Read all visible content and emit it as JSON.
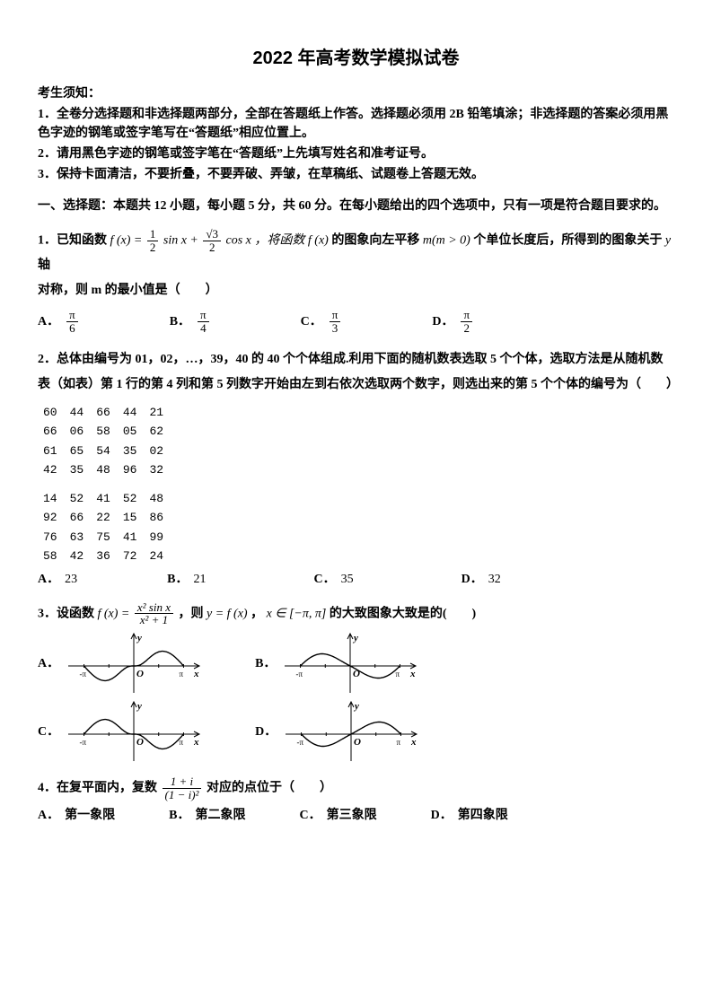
{
  "title": "2022 年高考数学模拟试卷",
  "instructions_header": "考生须知：",
  "instructions": [
    "1．全卷分选择题和非选择题两部分，全部在答题纸上作答。选择题必须用 2B 铅笔填涂；非选择题的答案必须用黑色字迹的钢笔或签字笔写在“答题纸”相应位置上。",
    "2．请用黑色字迹的钢笔或签字笔在“答题纸”上先填写姓名和准考证号。",
    "3．保持卡面清洁，不要折叠，不要弄破、弄皱，在草稿纸、试题卷上答题无效。"
  ],
  "section1": "一、选择题：本题共 12 小题，每小题 5 分，共 60 分。在每小题给出的四个选项中，只有一项是符合题目要求的。",
  "q1": {
    "pre": "1．已知函数 ",
    "fn_lhs": "f (x) = ",
    "frac1": {
      "num": "1",
      "den": "2"
    },
    "mid1": " sin x + ",
    "frac2": {
      "num": "√3",
      "den": "2"
    },
    "mid2": " cos x ，将函数 ",
    "fx": "f (x)",
    "post1": " 的图象向左平移 ",
    "mcond": "m(m > 0)",
    "post2": " 个单位长度后，所得到的图象关于 ",
    "yaxis": "y",
    "post3": " 轴",
    "line2": "对称，则 m 的最小值是（　　）",
    "options": {
      "A": {
        "num": "π",
        "den": "6"
      },
      "B": {
        "num": "π",
        "den": "4"
      },
      "C": {
        "num": "π",
        "den": "3"
      },
      "D": {
        "num": "π",
        "den": "2"
      }
    }
  },
  "q2": {
    "text": "2．总体由编号为 01，02，…，39，40 的 40 个个体组成.利用下面的随机数表选取 5 个个体，选取方法是从随机数表（如表）第 1 行的第 4 列和第 5 列数字开始由左到右依次选取两个数字，则选出来的第 5 个个体的编号为（　　）",
    "table": {
      "block1": [
        [
          "60",
          "44",
          "66",
          "44",
          "21"
        ],
        [
          "66",
          "06",
          "58",
          "05",
          "62"
        ],
        [
          "61",
          "65",
          "54",
          "35",
          "02"
        ],
        [
          "42",
          "35",
          "48",
          "96",
          "32"
        ]
      ],
      "block2": [
        [
          "14",
          "52",
          "41",
          "52",
          "48"
        ],
        [
          "92",
          "66",
          "22",
          "15",
          "86"
        ],
        [
          "76",
          "63",
          "75",
          "41",
          "99"
        ],
        [
          "58",
          "42",
          "36",
          "72",
          "24"
        ]
      ]
    },
    "options": {
      "A": "23",
      "B": "21",
      "C": "35",
      "D": "32"
    }
  },
  "q3": {
    "pre": "3．设函数 ",
    "fn_lhs": "f (x) = ",
    "frac": {
      "num": "x² sin x",
      "den": "x² + 1"
    },
    "mid": " ，则 ",
    "yfx": "y = f (x)",
    "comma": " ， ",
    "range": "x ∈ [−π, π]",
    "post": " 的大致图象大致是的(　　)",
    "graphs": {
      "ylim": [
        -1,
        1
      ],
      "xlim": [
        -3.5,
        3.5
      ],
      "xticks": [
        "-π",
        "-π/2",
        "π/2",
        "π"
      ],
      "axis_color": "#000000",
      "curve_color": "#000000",
      "line_width": 1.4,
      "background": "#ffffff",
      "A": {
        "shape": "sin_like",
        "sign": 1,
        "peaks_inside": true
      },
      "B": {
        "shape": "sin_like",
        "sign": -1,
        "peaks_inside": false
      },
      "C": {
        "shape": "neg_sin",
        "sign": -1,
        "peaks_inside": true
      },
      "D": {
        "shape": "neg_sin_shift",
        "sign": 1,
        "peaks_inside": false
      }
    }
  },
  "q4": {
    "pre": "4．在复平面内，复数 ",
    "frac": {
      "num": "1 + i",
      "den": "(1 − i)²"
    },
    "post": " 对应的点位于（　　）",
    "options": {
      "A": "第一象限",
      "B": "第二象限",
      "C": "第三象限",
      "D": "第四象限"
    }
  },
  "labels": {
    "A": "A．",
    "B": "B．",
    "C": "C．",
    "D": "D．"
  },
  "style": {
    "title_fontsize": 20,
    "body_fontsize": 14,
    "text_color": "#000000",
    "background_color": "#ffffff"
  }
}
